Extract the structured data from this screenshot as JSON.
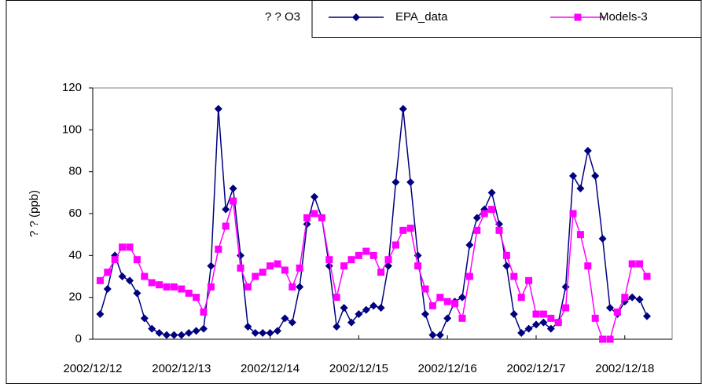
{
  "chart_data": {
    "type": "line",
    "title": "? ? O3",
    "y_label": "? ? (ppb)",
    "categories": [
      "2002/12/12",
      null,
      null,
      null,
      null,
      null,
      null,
      null,
      null,
      null,
      null,
      null,
      "2002/12/13",
      null,
      null,
      null,
      null,
      null,
      null,
      null,
      null,
      null,
      null,
      null,
      "2002/12/14",
      null,
      null,
      null,
      null,
      null,
      null,
      null,
      null,
      null,
      null,
      null,
      "2002/12/15",
      null,
      null,
      null,
      null,
      null,
      null,
      null,
      null,
      null,
      null,
      null,
      "2002/12/16",
      null,
      null,
      null,
      null,
      null,
      null,
      null,
      null,
      null,
      null,
      null,
      "2002/12/17",
      null,
      null,
      null,
      null,
      null,
      null,
      null,
      null,
      null,
      null,
      null,
      "2002/12/18",
      null,
      null,
      null,
      null,
      null,
      null
    ],
    "series": [
      {
        "name": "EPA_data",
        "color": "#000080",
        "marker": "diamond",
        "values": [
          null,
          12,
          24,
          40,
          30,
          28,
          22,
          10,
          5,
          3,
          2,
          2,
          2,
          3,
          4,
          5,
          35,
          110,
          62,
          72,
          40,
          6,
          3,
          3,
          3,
          4,
          10,
          8,
          25,
          55,
          68,
          58,
          35,
          6,
          15,
          8,
          12,
          14,
          16,
          15,
          35,
          75,
          110,
          75,
          40,
          12,
          2,
          2,
          10,
          18,
          20,
          45,
          58,
          62,
          70,
          55,
          35,
          12,
          3,
          5,
          7,
          8,
          5,
          8,
          25,
          78,
          72,
          90,
          78,
          48,
          15,
          12,
          18,
          20,
          19,
          11,
          null,
          null,
          null
        ]
      },
      {
        "name": "Models-3",
        "color": "#ff00ff",
        "marker": "square",
        "values": [
          null,
          28,
          32,
          38,
          44,
          44,
          38,
          30,
          27,
          26,
          25,
          25,
          24,
          22,
          20,
          13,
          25,
          43,
          54,
          66,
          34,
          25,
          30,
          32,
          35,
          36,
          33,
          25,
          34,
          58,
          60,
          58,
          38,
          20,
          35,
          38,
          40,
          42,
          40,
          32,
          38,
          45,
          52,
          53,
          35,
          24,
          16,
          20,
          18,
          17,
          10,
          30,
          52,
          60,
          62,
          52,
          40,
          30,
          20,
          28,
          12,
          12,
          10,
          8,
          15,
          60,
          50,
          35,
          10,
          0,
          0,
          13,
          20,
          36,
          36,
          30,
          null,
          null,
          null
        ]
      }
    ],
    "ylim": [
      0,
      120
    ],
    "yticks": [
      0,
      20,
      40,
      60,
      80,
      100,
      120
    ],
    "grid": false,
    "legend": "top-right"
  }
}
